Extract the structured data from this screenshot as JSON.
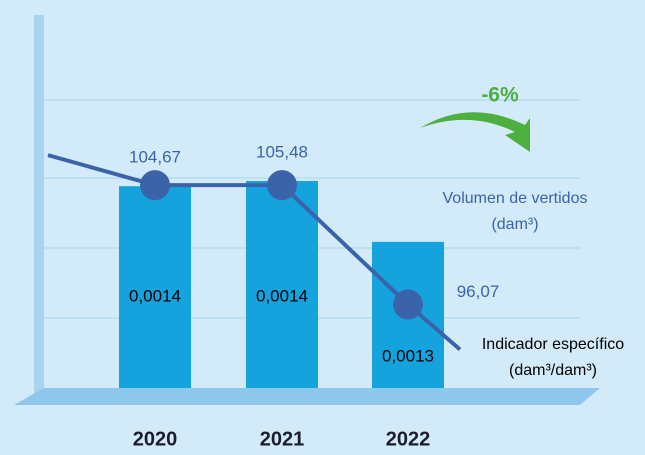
{
  "chart_data": {
    "type": "bar_line",
    "categories": [
      "2020",
      "2021",
      "2022"
    ],
    "series": [
      {
        "name": "Volumen de vertidos (dam³)",
        "color": "#14a3dd",
        "values": [
          104.67,
          105.48,
          96.07
        ],
        "value_labels": [
          "104,67",
          "105,48",
          "96,07"
        ]
      },
      {
        "name": "Indicador específico (dam³/dam³)",
        "color": "#3b63a9",
        "axis": "y2",
        "values": [
          0.0014,
          0.0014,
          0.0013
        ],
        "value_labels": [
          "0,0014",
          "0,0014",
          "0,0013"
        ]
      }
    ],
    "annotation": "-6%",
    "ylim": [
      73.5,
      128.8
    ],
    "y2lim": [
      0.00123,
      0.00153
    ]
  }
}
